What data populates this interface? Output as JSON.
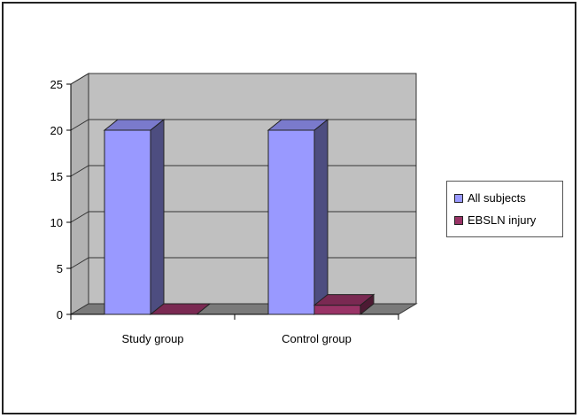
{
  "chart_data": {
    "type": "bar",
    "categories": [
      "Study group",
      "Control group"
    ],
    "series": [
      {
        "name": "All subjects",
        "values": [
          20,
          20
        ],
        "color": "#9999ff"
      },
      {
        "name": "EBSLN injury",
        "values": [
          0,
          1
        ],
        "color": "#993366"
      }
    ],
    "ylim": [
      0,
      25
    ],
    "yticks": [
      "0",
      "5",
      "10",
      "15",
      "20",
      "25"
    ],
    "title": "",
    "xlabel": "",
    "ylabel": "",
    "grid": true,
    "legend": "right",
    "three_d": true,
    "plot_background": "#c0c0c0"
  }
}
